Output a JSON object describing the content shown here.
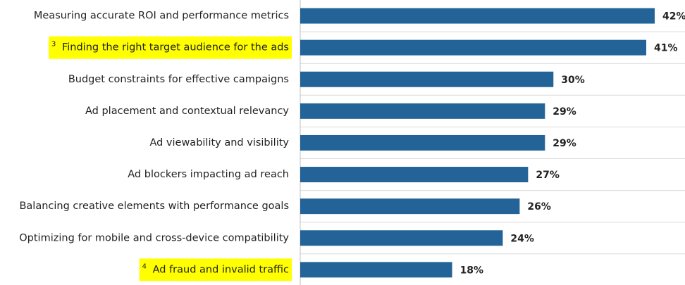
{
  "chart_data": {
    "type": "bar",
    "orientation": "horizontal",
    "categories": [
      "Measuring accurate ROI and performance metrics",
      "Finding the right target audience for the ads",
      "Budget constraints for effective campaigns",
      "Ad placement and contextual relevancy",
      "Ad viewability and visibility",
      "Ad blockers impacting ad reach",
      "Balancing creative elements with performance goals",
      "Optimizing for mobile and cross-device compatibility",
      "Ad fraud and invalid traffic"
    ],
    "category_notes": [
      null,
      "3",
      null,
      null,
      null,
      null,
      null,
      null,
      "4"
    ],
    "highlighted": [
      false,
      true,
      false,
      false,
      false,
      false,
      false,
      false,
      true
    ],
    "highlight_color": "#ffff00",
    "values": [
      42,
      41,
      30,
      29,
      29,
      27,
      26,
      24,
      18
    ],
    "value_labels": [
      "42%",
      "41%",
      "30%",
      "29%",
      "29%",
      "27%",
      "26%",
      "24%",
      "18%"
    ],
    "color": "#236397",
    "xlim": [
      0,
      42
    ],
    "grid": true
  }
}
